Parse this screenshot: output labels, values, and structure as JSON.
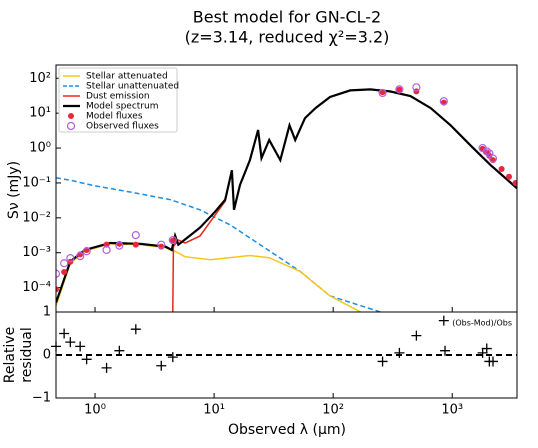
{
  "chart_data": [
    {
      "type": "line",
      "title": "Best model for GN-CL-2",
      "subtitle": "(z=3.14, reduced χ²=3.2)",
      "ylabel": "Sν (mJy)",
      "xscale": "log",
      "yscale": "log",
      "xlim": [
        0.47,
        3500
      ],
      "ylim": [
        2e-05,
        240
      ],
      "yticks": [
        {
          "value": 0.0001,
          "label": "10⁻⁴"
        },
        {
          "value": 0.001,
          "label": "10⁻³"
        },
        {
          "value": 0.01,
          "label": "10⁻²"
        },
        {
          "value": 0.1,
          "label": "10⁻¹"
        },
        {
          "value": 1,
          "label": "10⁰"
        },
        {
          "value": 10,
          "label": "10¹"
        },
        {
          "value": 100,
          "label": "10²"
        }
      ],
      "legend": "upper left",
      "series": [
        {
          "name": "Stellar attenuated",
          "color": "#f5c518",
          "mode": "line",
          "x": [
            0.47,
            0.53,
            0.62,
            0.82,
            1.34,
            2.4,
            3.9,
            4.4,
            4.7,
            5.7,
            9.3,
            20,
            29,
            53,
            94,
            170
          ],
          "values": [
            3e-05,
            0.0001,
            0.0005,
            0.0011,
            0.0018,
            0.0017,
            0.0014,
            0.0012,
            0.0011,
            0.00077,
            0.00063,
            0.00083,
            0.00072,
            0.00029,
            5.8e-05,
            2e-05
          ]
        },
        {
          "name": "Stellar unattenuated",
          "color": "#1f8ee0",
          "mode": "dashed",
          "x": [
            0.47,
            0.62,
            1,
            1.97,
            4.3,
            7.6,
            13.6,
            24.4,
            53,
            94,
            250
          ],
          "values": [
            0.14,
            0.12,
            0.082,
            0.055,
            0.033,
            0.017,
            0.0063,
            0.0017,
            0.00029,
            5.8e-05,
            2e-05
          ]
        },
        {
          "name": "Dust emission",
          "color": "#e8271c",
          "mode": "line",
          "x": [
            4.5,
            4.55,
            5.0,
            5.7,
            7.6,
            10.2,
            12.4,
            14.1,
            14.7,
            16.5,
            20,
            23.4,
            25,
            29,
            36,
            43,
            48,
            58,
            71,
            94,
            139,
            205,
            300,
            445,
            660,
            970,
            1420,
            2090,
            3500
          ],
          "values": [
            2e-05,
            0.0015,
            0.0023,
            0.0019,
            0.003,
            0.012,
            0.03,
            0.23,
            0.017,
            0.088,
            0.45,
            3.3,
            0.52,
            1.7,
            0.45,
            4.5,
            1.7,
            7.2,
            14,
            29,
            45,
            48,
            42,
            31,
            14,
            4.5,
            1.2,
            0.33,
            0.07
          ]
        },
        {
          "name": "Model spectrum",
          "color": "#000000",
          "mode": "line",
          "x": [
            0.47,
            0.53,
            0.62,
            0.82,
            1.34,
            2.4,
            3.9,
            4.4,
            4.7,
            5.0,
            5.7,
            7.6,
            10.2,
            12.4,
            14.1,
            14.7,
            16.5,
            20,
            23.4,
            25,
            29,
            36,
            43,
            48,
            58,
            71,
            94,
            139,
            205,
            300,
            445,
            660,
            970,
            1420,
            2090,
            3500
          ],
          "values": [
            3.7e-05,
            0.00012,
            0.00056,
            0.0012,
            0.0019,
            0.0018,
            0.0015,
            0.0012,
            0.0031,
            0.0017,
            0.0024,
            0.0052,
            0.015,
            0.033,
            0.23,
            0.017,
            0.088,
            0.45,
            3.3,
            0.52,
            1.7,
            0.45,
            4.5,
            1.7,
            7.2,
            14,
            29,
            45,
            48,
            42,
            31,
            14,
            4.5,
            1.2,
            0.33,
            0.07
          ]
        },
        {
          "name": "Model fluxes",
          "color": "#e8273c",
          "mode": "dot",
          "x": [
            0.47,
            0.55,
            0.62,
            0.75,
            0.85,
            1.25,
            1.6,
            2.2,
            3.6,
            4.5,
            260,
            360,
            500,
            850,
            1800,
            1950,
            2050,
            2200,
            2600,
            3000,
            3400
          ],
          "values": [
            9e-05,
            0.00028,
            0.00055,
            0.0009,
            0.0012,
            0.0017,
            0.0018,
            0.0017,
            0.0015,
            0.0022,
            40,
            47,
            42,
            20,
            0.95,
            0.75,
            0.6,
            0.45,
            0.25,
            0.15,
            0.1
          ]
        },
        {
          "name": "Observed fluxes",
          "color": "#b060e0",
          "mode": "circle",
          "x": [
            0.47,
            0.55,
            0.62,
            0.75,
            0.85,
            1.25,
            1.6,
            2.2,
            3.6,
            4.5,
            260,
            360,
            500,
            850,
            1800,
            1950,
            2050,
            2200
          ],
          "values": [
            0.00025,
            0.0005,
            0.0007,
            0.0008,
            0.0011,
            0.0012,
            0.0016,
            0.0032,
            0.0017,
            0.0023,
            38,
            48,
            55,
            22,
            1.0,
            0.8,
            0.7,
            0.5
          ]
        }
      ]
    },
    {
      "type": "scatter",
      "xlabel": "Observed λ (μm)",
      "ylabel": [
        "Relative",
        "residual"
      ],
      "annotation": "(Obs-Mod)/Obs",
      "xscale": "log",
      "xlim": [
        0.47,
        3500
      ],
      "ylim": [
        -1,
        1
      ],
      "xticks": [
        {
          "value": 1,
          "label": "10⁰"
        },
        {
          "value": 10,
          "label": "10¹"
        },
        {
          "value": 100,
          "label": "10²"
        },
        {
          "value": 1000,
          "label": "10³"
        }
      ],
      "yticks": [
        {
          "value": -1,
          "label": "−1"
        },
        0,
        1
      ],
      "series": [
        {
          "color": "#000000",
          "x": [
            0.47,
            0.55,
            0.62,
            0.75,
            0.85,
            1.25,
            1.6,
            2.2,
            3.6,
            4.5,
            260,
            360,
            500,
            850,
            870,
            1800,
            1950,
            2050,
            2200
          ],
          "values": [
            0.2,
            0.5,
            0.3,
            0.2,
            -0.1,
            -0.3,
            0.1,
            0.6,
            -0.25,
            -0.05,
            -0.15,
            0.05,
            0.45,
            0.8,
            0.1,
            0.05,
            0.15,
            -0.15,
            -0.15
          ]
        }
      ]
    }
  ]
}
